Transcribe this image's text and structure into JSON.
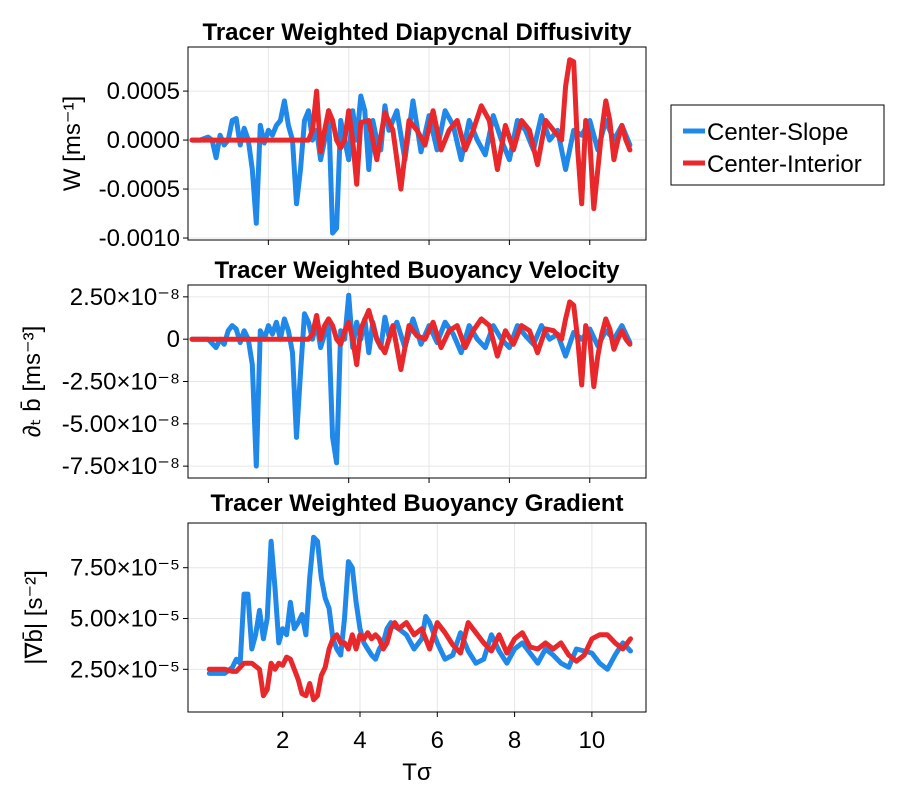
{
  "legend": {
    "placement": "right",
    "entries": [
      {
        "name": "Center-Slope",
        "color": "#1f88e8"
      },
      {
        "name": "Center-Interior",
        "color": "#e8282b"
      }
    ]
  },
  "chart_data": [
    {
      "type": "line",
      "title": "Tracer Weighted Diapycnal Diffusivity",
      "ylabel": "W [ms⁻¹]",
      "xlabel": "",
      "xlim": [
        0,
        11.4
      ],
      "ylim": [
        -0.00102,
        0.00095
      ],
      "xticks": [
        2,
        4,
        6,
        8,
        10
      ],
      "xtick_labels": [
        "",
        "",
        "",
        "",
        ""
      ],
      "yticks": [
        0.0005,
        0.0,
        -0.0005,
        -0.001
      ],
      "ytick_labels": [
        "0.0005",
        "0.0000",
        "-0.0005",
        "-0.0010"
      ],
      "grid": true,
      "series": [
        {
          "name": "Center-Slope",
          "color": "#1f88e8",
          "x": [
            0.1,
            0.3,
            0.5,
            0.6,
            0.7,
            0.8,
            0.9,
            1.0,
            1.1,
            1.2,
            1.3,
            1.4,
            1.5,
            1.6,
            1.7,
            1.8,
            1.9,
            2.0,
            2.1,
            2.2,
            2.3,
            2.4,
            2.5,
            2.6,
            2.7,
            2.8,
            2.9,
            3.0,
            3.1,
            3.2,
            3.3,
            3.4,
            3.5,
            3.6,
            3.7,
            3.8,
            3.9,
            4.0,
            4.1,
            4.2,
            4.3,
            4.4,
            4.5,
            4.6,
            4.7,
            4.8,
            4.9,
            5.0,
            5.2,
            5.4,
            5.6,
            5.8,
            6.0,
            6.2,
            6.4,
            6.6,
            6.8,
            7.0,
            7.2,
            7.4,
            7.6,
            7.8,
            8.0,
            8.2,
            8.4,
            8.6,
            8.8,
            9.0,
            9.2,
            9.4,
            9.6,
            9.8,
            10.0,
            10.2,
            10.4,
            10.6,
            10.8,
            11.0
          ],
          "y": [
            0.0,
            0.0,
            3e-05,
            0.0,
            -0.00018,
            5e-05,
            -5e-05,
            0.0,
            0.0002,
            0.00022,
            -5e-05,
            0.00012,
            0.0,
            -0.0003,
            -0.00085,
            0.00015,
            -3e-05,
            0.0001,
            5e-05,
            0.00015,
            0.0002,
            0.0004,
            0.00015,
            0.0,
            -0.00065,
            -0.0003,
            0.0002,
            0.0003,
            0.0,
            0.0001,
            -0.0002,
            0.0,
            0.0003,
            -0.00095,
            -0.0009,
            0.0002,
            0.0,
            -0.0002,
            0.0003,
            0.0,
            0.00045,
            0.0003,
            -0.0003,
            0.0002,
            0.0,
            -0.0001,
            0.00035,
            0.0001,
            0.0003,
            -0.0002,
            0.0004,
            -0.00012,
            0.00025,
            -0.0001,
            0.0003,
            0.00015,
            -0.0002,
            0.0002,
            0.0,
            -0.00015,
            0.00025,
            0.0,
            -0.0002,
            0.0002,
            0.0001,
            -0.0001,
            0.00025,
            0.0,
            0.0001,
            -0.0003,
            0.0001,
            5e-05,
            0.0002,
            -0.0001,
            0.0002,
            0.0,
            0.00015,
            -5e-05
          ]
        },
        {
          "name": "Center-Interior",
          "color": "#e8282b",
          "x": [
            0.1,
            0.5,
            1.0,
            1.5,
            2.0,
            2.5,
            2.8,
            3.0,
            3.1,
            3.2,
            3.3,
            3.4,
            3.5,
            3.6,
            3.7,
            3.8,
            3.9,
            4.0,
            4.1,
            4.2,
            4.3,
            4.5,
            4.7,
            4.9,
            5.1,
            5.3,
            5.5,
            5.7,
            5.9,
            6.1,
            6.3,
            6.5,
            6.7,
            6.9,
            7.1,
            7.3,
            7.5,
            7.7,
            7.9,
            8.1,
            8.3,
            8.5,
            8.7,
            8.9,
            9.1,
            9.3,
            9.4,
            9.5,
            9.6,
            9.7,
            9.8,
            9.9,
            10.0,
            10.1,
            10.2,
            10.3,
            10.4,
            10.5,
            10.6,
            10.7,
            10.8,
            10.9,
            11.0
          ],
          "y": [
            0.0,
            0.0,
            0.0,
            0.0,
            0.0,
            0.0,
            0.0,
            0.0,
            0.0001,
            0.0005,
            -0.00012,
            0.0001,
            0.0003,
            0.0002,
            0.0,
            -8e-05,
            0.0,
            0.0003,
            0.0,
            -0.00045,
            0.00018,
            0.0002,
            -0.0002,
            0.00028,
            0.0001,
            -0.0005,
            0.0002,
            0.0001,
            -5e-05,
            0.0003,
            -0.0001,
            0.0001,
            0.0002,
            -0.0001,
            0.0001,
            0.00035,
            0.0002,
            -0.0003,
            0.00015,
            -0.0001,
            0.0002,
            0.0001,
            -0.00025,
            0.0002,
            0.0001,
            0.0,
            0.00055,
            0.00082,
            0.0008,
            -0.0001,
            -0.00065,
            0.0002,
            0.0,
            -0.0007,
            -0.0003,
            0.0001,
            0.0004,
            0.0002,
            -0.0002,
            0.0,
            0.00015,
            0.0,
            -0.0001
          ]
        }
      ]
    },
    {
      "type": "line",
      "title": "Tracer Weighted Buoyancy Velocity",
      "ylabel": "∂ₜ b̄ [ms⁻³]",
      "xlabel": "",
      "xlim": [
        0,
        11.4
      ],
      "ylim": [
        -8.2e-08,
        3.2e-08
      ],
      "xticks": [
        2,
        4,
        6,
        8,
        10
      ],
      "xtick_labels": [
        "",
        "",
        "",
        "",
        ""
      ],
      "yticks": [
        2.5e-08,
        0,
        -2.5e-08,
        -5e-08,
        -7.5e-08
      ],
      "ytick_labels": [
        "2.50×10⁻⁸",
        "0",
        "-2.50×10⁻⁸",
        "-5.00×10⁻⁸",
        "-7.50×10⁻⁸"
      ],
      "grid": true,
      "series": [
        {
          "name": "Center-Slope",
          "color": "#1f88e8",
          "x": [
            0.1,
            0.3,
            0.5,
            0.7,
            0.8,
            0.9,
            1.0,
            1.1,
            1.2,
            1.3,
            1.4,
            1.5,
            1.6,
            1.7,
            1.8,
            1.9,
            2.0,
            2.1,
            2.2,
            2.3,
            2.4,
            2.5,
            2.6,
            2.7,
            2.8,
            2.9,
            3.0,
            3.1,
            3.2,
            3.3,
            3.4,
            3.5,
            3.6,
            3.7,
            3.8,
            3.9,
            4.0,
            4.1,
            4.2,
            4.3,
            4.4,
            4.5,
            4.6,
            4.7,
            4.8,
            4.9,
            5.0,
            5.2,
            5.4,
            5.6,
            5.8,
            6.0,
            6.2,
            6.4,
            6.6,
            6.8,
            7.0,
            7.2,
            7.4,
            7.6,
            7.8,
            8.0,
            8.2,
            8.4,
            8.6,
            8.8,
            9.0,
            9.2,
            9.4,
            9.6,
            9.8,
            10.0,
            10.2,
            10.4,
            10.6,
            10.8,
            11.0
          ],
          "y": [
            0.0,
            0.0,
            0.0,
            -5e-09,
            0.0,
            -3e-09,
            5e-09,
            8e-09,
            6e-09,
            -2e-09,
            5e-09,
            0.0,
            -1.5e-08,
            -7.5e-08,
            5e-09,
            0.0,
            8e-09,
            3e-09,
            1e-08,
            0.0,
            1.2e-08,
            5e-09,
            -8e-09,
            -5.8e-08,
            -2e-08,
            1.5e-08,
            1e-08,
            0.0,
            1e-08,
            -5e-09,
            3e-09,
            8e-09,
            -5.8e-08,
            -7.3e-08,
            5e-09,
            0.0,
            2.6e-08,
            -5e-09,
            1e-08,
            0.0,
            1.2e-08,
            -8e-09,
            1e-08,
            0.0,
            -5e-09,
            1.3e-08,
            2e-09,
            1e-08,
            -5e-09,
            1.2e-08,
            -3e-09,
            8e-09,
            -2e-09,
            1e-08,
            3e-09,
            -8e-09,
            8e-09,
            0.0,
            -5e-09,
            8e-09,
            0.0,
            -5e-09,
            8e-09,
            2e-09,
            -3e-09,
            8e-09,
            0.0,
            3e-09,
            -1e-08,
            4e-09,
            0.0,
            6e-09,
            -4e-09,
            5e-09,
            0.0,
            8e-09,
            -2e-09
          ]
        },
        {
          "name": "Center-Interior",
          "color": "#e8282b",
          "x": [
            0.1,
            0.5,
            1.0,
            1.5,
            2.0,
            2.5,
            2.8,
            3.0,
            3.1,
            3.2,
            3.3,
            3.4,
            3.5,
            3.6,
            3.7,
            3.8,
            3.9,
            4.0,
            4.1,
            4.2,
            4.3,
            4.5,
            4.7,
            4.9,
            5.1,
            5.3,
            5.5,
            5.7,
            5.9,
            6.1,
            6.3,
            6.5,
            6.7,
            6.9,
            7.1,
            7.3,
            7.5,
            7.7,
            7.9,
            8.1,
            8.3,
            8.5,
            8.7,
            8.9,
            9.1,
            9.3,
            9.4,
            9.5,
            9.6,
            9.7,
            9.8,
            9.9,
            10.0,
            10.1,
            10.2,
            10.3,
            10.4,
            10.5,
            10.6,
            10.7,
            10.8,
            10.9,
            11.0
          ],
          "y": [
            0.0,
            0.0,
            0.0,
            0.0,
            0.0,
            0.0,
            0.0,
            0.0,
            3e-09,
            1.4e-08,
            0.0,
            8e-09,
            1.2e-08,
            8e-09,
            0.0,
            -3e-09,
            5e-09,
            1e-08,
            0.0,
            -1.5e-08,
            6e-09,
            1.7e-08,
            0.0,
            -8e-09,
            8e-09,
            -1.8e-08,
            8e-09,
            2e-09,
            0.0,
            1e-08,
            -5e-09,
            5e-09,
            8e-09,
            -5e-09,
            5e-09,
            1.2e-08,
            8e-09,
            -1e-08,
            5e-09,
            -3e-09,
            8e-09,
            5e-09,
            -8e-09,
            6e-09,
            5e-09,
            0.0,
            1.2e-08,
            2.2e-08,
            2e-08,
            0.0,
            -2.7e-08,
            8e-09,
            0.0,
            -2.8e-08,
            -1e-08,
            3e-09,
            1.2e-08,
            6e-09,
            -6e-09,
            0.0,
            5e-09,
            0.0,
            -3e-09
          ]
        }
      ]
    },
    {
      "type": "line",
      "title": "Tracer Weighted Buoyancy Gradient",
      "ylabel": "|∇b̄| [s⁻²]",
      "xlabel": "Tσ",
      "xlim": [
        -0.45,
        11.4
      ],
      "ylim": [
        4e-06,
        9.7e-05
      ],
      "xticks": [
        2,
        4,
        6,
        8,
        10
      ],
      "xtick_labels": [
        "2",
        "4",
        "6",
        "8",
        "10"
      ],
      "yticks": [
        7.5e-05,
        5e-05,
        2.5e-05
      ],
      "ytick_labels": [
        "7.50×10⁻⁵",
        "5.00×10⁻⁵",
        "2.50×10⁻⁵"
      ],
      "grid": true,
      "series": [
        {
          "name": "Center-Slope",
          "color": "#1f88e8",
          "x": [
            0.1,
            0.3,
            0.5,
            0.7,
            0.8,
            0.9,
            1.0,
            1.1,
            1.2,
            1.3,
            1.4,
            1.5,
            1.6,
            1.7,
            1.8,
            1.9,
            2.0,
            2.1,
            2.2,
            2.3,
            2.4,
            2.5,
            2.6,
            2.7,
            2.8,
            2.9,
            3.0,
            3.1,
            3.2,
            3.3,
            3.4,
            3.5,
            3.6,
            3.7,
            3.8,
            3.9,
            4.0,
            4.1,
            4.2,
            4.3,
            4.4,
            4.5,
            4.6,
            4.7,
            4.8,
            4.9,
            5.0,
            5.2,
            5.4,
            5.6,
            5.7,
            5.8,
            6.0,
            6.2,
            6.4,
            6.6,
            6.8,
            7.0,
            7.2,
            7.4,
            7.6,
            7.8,
            8.0,
            8.2,
            8.4,
            8.6,
            8.8,
            9.0,
            9.2,
            9.4,
            9.6,
            9.8,
            10.0,
            10.2,
            10.4,
            10.6,
            10.8,
            11.0
          ],
          "y": [
            2.3e-05,
            2.3e-05,
            2.3e-05,
            2.6e-05,
            3e-05,
            2.8e-05,
            6.2e-05,
            6.2e-05,
            3.5e-05,
            4.2e-05,
            5.4e-05,
            4e-05,
            5e-05,
            8.8e-05,
            6.5e-05,
            3.8e-05,
            4.5e-05,
            4.2e-05,
            5.8e-05,
            4.5e-05,
            4.8e-05,
            5.2e-05,
            4.2e-05,
            7e-05,
            9e-05,
            8.8e-05,
            7e-05,
            6e-05,
            5.5e-05,
            4e-05,
            3.5e-05,
            3.2e-05,
            5e-05,
            7.8e-05,
            7.5e-05,
            5.8e-05,
            4.5e-05,
            3.8e-05,
            3.5e-05,
            3.2e-05,
            3e-05,
            3.5e-05,
            3.8e-05,
            4.5e-05,
            4.8e-05,
            4.6e-05,
            4.5e-05,
            4.2e-05,
            3.5e-05,
            4e-05,
            5.1e-05,
            4.8e-05,
            3.8e-05,
            3e-05,
            3.2e-05,
            4.3e-05,
            3.4e-05,
            2.8e-05,
            3e-05,
            4.2e-05,
            3.4e-05,
            2.8e-05,
            3.5e-05,
            3.8e-05,
            3.3e-05,
            2.8e-05,
            3.5e-05,
            3.2e-05,
            2.8e-05,
            2.6e-05,
            3.5e-05,
            3.4e-05,
            3.3e-05,
            2.8e-05,
            2.5e-05,
            3.2e-05,
            3.8e-05,
            3.4e-05
          ]
        },
        {
          "name": "Center-Interior",
          "color": "#e8282b",
          "x": [
            0.1,
            0.3,
            0.5,
            0.7,
            0.8,
            0.9,
            1.0,
            1.2,
            1.4,
            1.5,
            1.6,
            1.7,
            1.8,
            1.9,
            2.0,
            2.1,
            2.2,
            2.3,
            2.4,
            2.5,
            2.6,
            2.7,
            2.8,
            2.9,
            3.0,
            3.1,
            3.2,
            3.3,
            3.4,
            3.5,
            3.6,
            3.7,
            3.8,
            3.9,
            4.0,
            4.1,
            4.2,
            4.3,
            4.4,
            4.5,
            4.6,
            4.7,
            4.8,
            4.9,
            5.0,
            5.2,
            5.4,
            5.6,
            5.8,
            6.0,
            6.2,
            6.4,
            6.6,
            6.8,
            7.0,
            7.2,
            7.4,
            7.6,
            7.8,
            8.0,
            8.2,
            8.4,
            8.6,
            8.8,
            9.0,
            9.2,
            9.4,
            9.6,
            9.8,
            10.0,
            10.2,
            10.4,
            10.6,
            10.8,
            11.0
          ],
          "y": [
            2.5e-05,
            2.5e-05,
            2.5e-05,
            2.4e-05,
            2.4e-05,
            2.6e-05,
            2.8e-05,
            2.8e-05,
            2.5e-05,
            1.2e-05,
            1.5e-05,
            2.8e-05,
            2.5e-05,
            2.8e-05,
            2.7e-05,
            3.1e-05,
            3e-05,
            2.5e-05,
            2e-05,
            1.3e-05,
            1.2e-05,
            1.8e-05,
            1e-05,
            1.2e-05,
            2.2e-05,
            2.6e-05,
            3.5e-05,
            4e-05,
            4.2e-05,
            3.8e-05,
            3.8e-05,
            3.5e-05,
            4.2e-05,
            3.5e-05,
            4.2e-05,
            4e-05,
            4.3e-05,
            4e-05,
            4.2e-05,
            4e-05,
            3.5e-05,
            3.8e-05,
            4.5e-05,
            4.8e-05,
            4.5e-05,
            4.8e-05,
            4.2e-05,
            4.5e-05,
            3.5e-05,
            4.8e-05,
            4.3e-05,
            3.7e-05,
            3.3e-05,
            4.8e-05,
            4.3e-05,
            3.8e-05,
            3.4e-05,
            4.2e-05,
            3.3e-05,
            4e-05,
            4.3e-05,
            3.6e-05,
            3.5e-05,
            3.8e-05,
            3.5e-05,
            3.8e-05,
            3.2e-05,
            2.9e-05,
            3.2e-05,
            4e-05,
            4.2e-05,
            4.2e-05,
            3.8e-05,
            3.5e-05,
            4e-05
          ]
        }
      ]
    }
  ]
}
